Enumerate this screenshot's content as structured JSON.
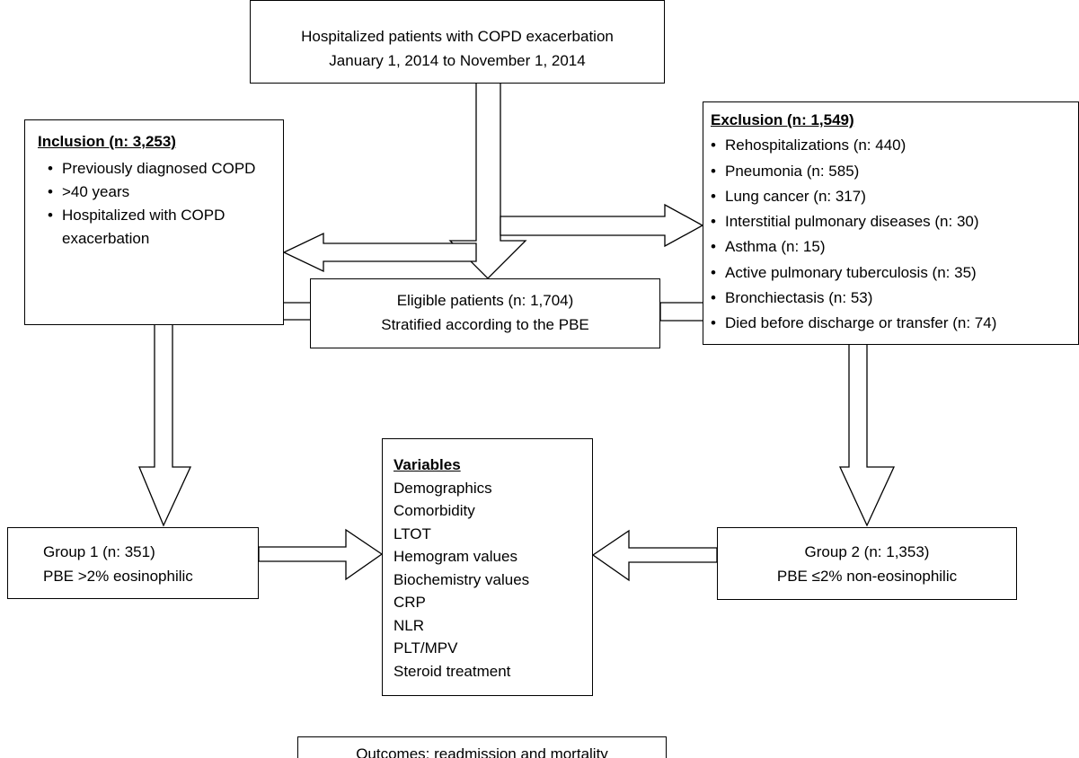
{
  "header": {
    "lines": [
      "Hospitalized patients with COPD exacerbation",
      "January 1, 2014 to November 1, 2014"
    ]
  },
  "inclusion": {
    "title": "Inclusion (n: 3,253)",
    "items": [
      "Previously diagnosed COPD",
      ">40 years",
      "Hospitalized with COPD exacerbation"
    ]
  },
  "exclusion": {
    "title": "Exclusion (n: 1,549)",
    "items": [
      "Rehospitalizations (n: 440)",
      "Pneumonia (n: 585)",
      "Lung cancer (n: 317)",
      "Interstitial pulmonary diseases (n: 30)",
      "Asthma (n: 15)",
      "Active pulmonary tuberculosis (n: 35)",
      "Bronchiectasis (n: 53)",
      "Died before discharge or transfer (n: 74)"
    ]
  },
  "eligible": {
    "lines": [
      "Eligible patients (n: 1,704)",
      "Stratified according to the PBE"
    ]
  },
  "group1": {
    "lines": [
      "Group 1 (n: 351)",
      "PBE >2% eosinophilic"
    ]
  },
  "group2": {
    "lines": [
      "Group 2 (n: 1,353)",
      "PBE ≤2% non-eosinophilic"
    ]
  },
  "variables": {
    "title": "Variables",
    "items": [
      "Demographics",
      "Comorbidity",
      "LTOT",
      "Hemogram values",
      "Biochemistry values",
      "CRP",
      "NLR",
      "PLT/MPV",
      "Steroid treatment"
    ]
  },
  "outcomes": {
    "text": "Outcomes: readmission and mortality"
  }
}
